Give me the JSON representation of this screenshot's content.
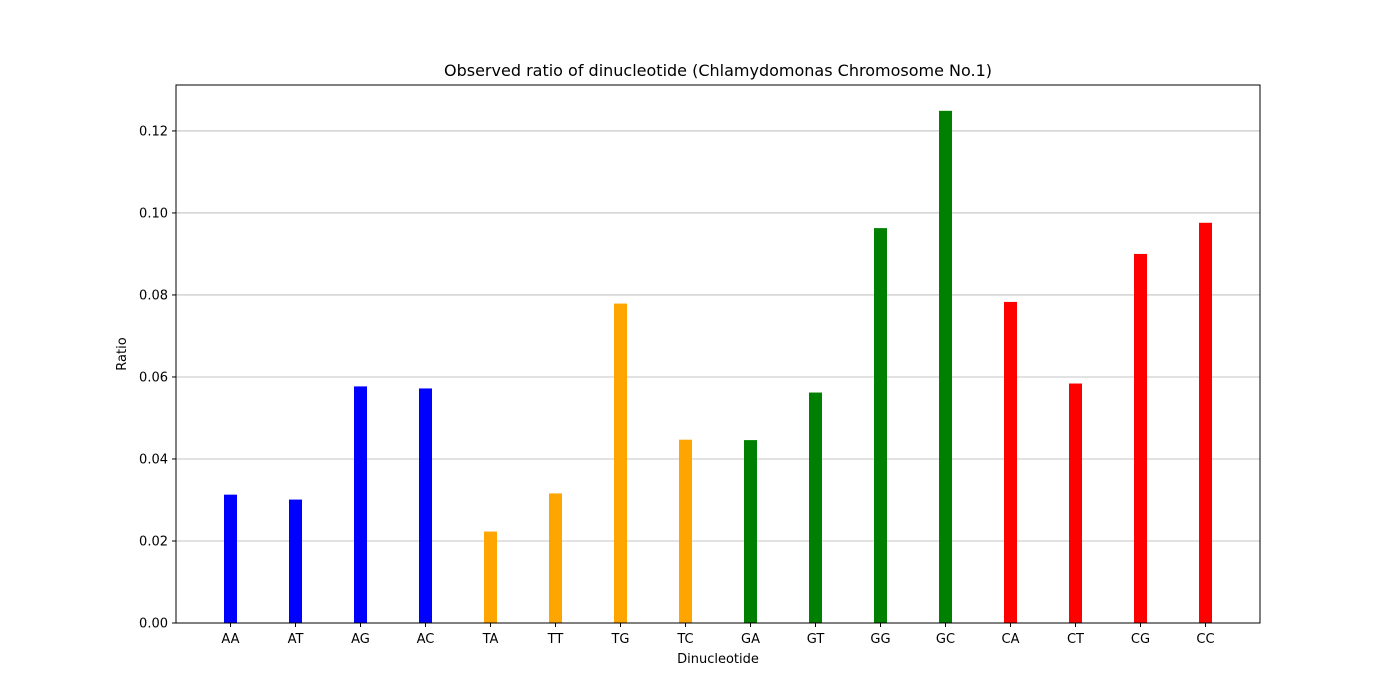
{
  "chart_data": {
    "type": "bar",
    "title": "Observed ratio of dinucleotide (Chlamydomonas Chromosome No.1)",
    "xlabel": "Dinucleotide",
    "ylabel": "Ratio",
    "ylim": [
      0,
      0.1312
    ],
    "yticks": [
      "0.00",
      "0.02",
      "0.04",
      "0.06",
      "0.08",
      "0.10",
      "0.12"
    ],
    "grid": "y",
    "categories": [
      "AA",
      "AT",
      "AG",
      "AC",
      "TA",
      "TT",
      "TG",
      "TC",
      "GA",
      "GT",
      "GG",
      "GC",
      "CA",
      "CT",
      "CG",
      "CC"
    ],
    "values": [
      0.0313,
      0.0301,
      0.0577,
      0.0572,
      0.0223,
      0.0316,
      0.0779,
      0.0447,
      0.0446,
      0.0562,
      0.0963,
      0.1249,
      0.0783,
      0.0584,
      0.09,
      0.0976
    ],
    "colors": [
      "#0000ff",
      "#0000ff",
      "#0000ff",
      "#0000ff",
      "#ffa500",
      "#ffa500",
      "#ffa500",
      "#ffa500",
      "#008000",
      "#008000",
      "#008000",
      "#008000",
      "#ff0000",
      "#ff0000",
      "#ff0000",
      "#ff0000"
    ]
  }
}
